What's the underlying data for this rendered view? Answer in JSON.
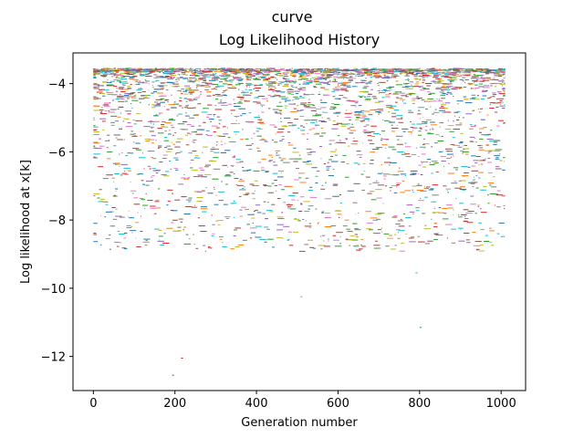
{
  "figure": {
    "suptitle": "curve"
  },
  "chart_data": {
    "type": "scatter",
    "title": "Log Likelihood History",
    "xlabel": "Generation number",
    "ylabel": "Log likelihood at x[k]",
    "xlim": [
      -50,
      1060
    ],
    "ylim": [
      -13.0,
      -3.1
    ],
    "xticks": [
      {
        "value": 0,
        "label": "0"
      },
      {
        "value": 200,
        "label": "200"
      },
      {
        "value": 400,
        "label": "400"
      },
      {
        "value": 600,
        "label": "600"
      },
      {
        "value": 800,
        "label": "800"
      },
      {
        "value": 1000,
        "label": "1000"
      }
    ],
    "yticks": [
      {
        "value": -12,
        "label": "−12"
      },
      {
        "value": -10,
        "label": "−10"
      },
      {
        "value": -8,
        "label": "−8"
      },
      {
        "value": -6,
        "label": "−6"
      },
      {
        "value": -4,
        "label": "−4"
      }
    ],
    "grid": false,
    "legend": "none",
    "palette": [
      "#1f77b4",
      "#ff7f0e",
      "#2ca02c",
      "#d62728",
      "#9467bd",
      "#8c564b",
      "#e377c2",
      "#7f7f7f",
      "#bcbd22",
      "#17becf"
    ],
    "series_count": 60,
    "generations": [
      0,
      1010
    ],
    "value_range": [
      -12.55,
      -3.5
    ],
    "notable_points": [
      {
        "x": 193,
        "y": -12.55
      },
      {
        "x": 215,
        "y": -12.05
      },
      {
        "x": 508,
        "y": -10.25
      },
      {
        "x": 790,
        "y": -9.55
      },
      {
        "x": 800,
        "y": -11.15
      }
    ],
    "distribution": "dense near -3.6 to -4.6, thinning toward -13"
  }
}
